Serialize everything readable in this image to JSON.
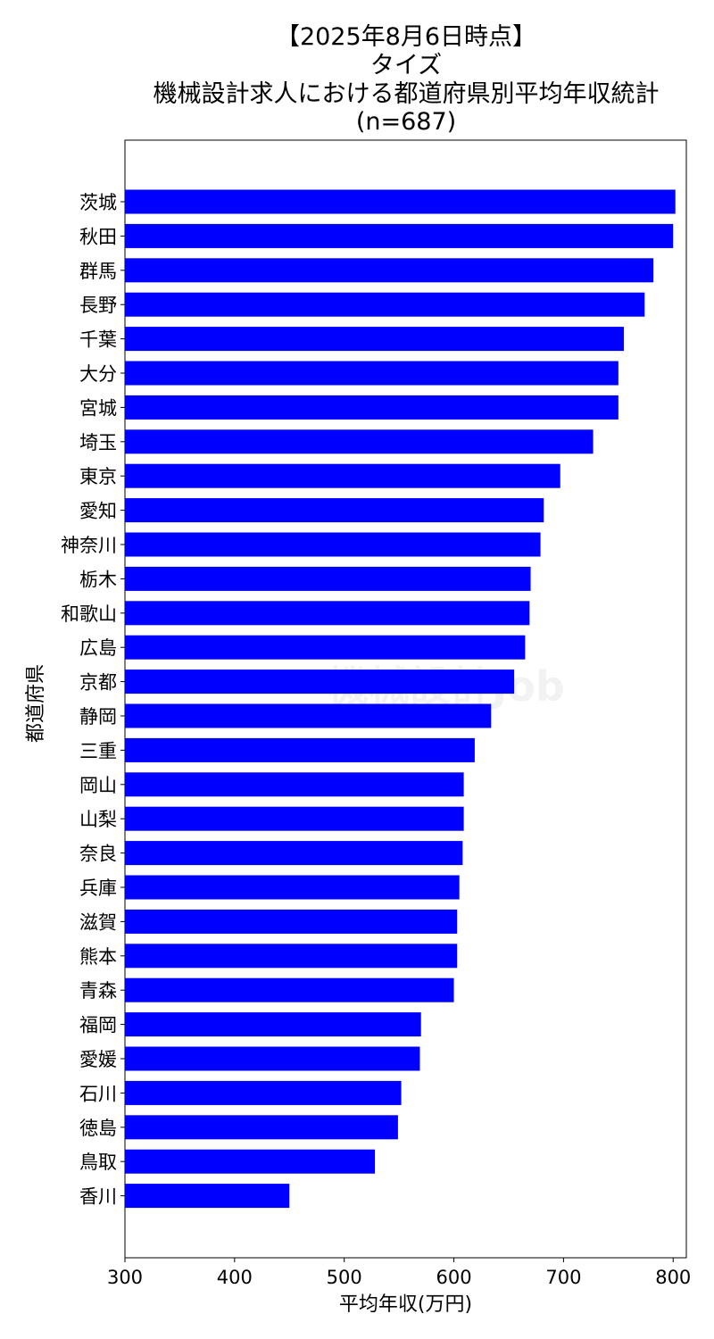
{
  "chart_data": {
    "type": "bar",
    "orientation": "horizontal",
    "title": [
      "【2025年8月6日時点】",
      "タイズ",
      "機械設計求人における都道府県別平均年収統計",
      "(n=687)"
    ],
    "xlabel": "平均年収(万円)",
    "ylabel": "都道府県",
    "xlim": [
      300,
      812
    ],
    "xticks": [
      300,
      400,
      500,
      600,
      700,
      800
    ],
    "grid": false,
    "bar_color": "#0000ff",
    "categories": [
      "茨城",
      "秋田",
      "群馬",
      "長野",
      "千葉",
      "大分",
      "宮城",
      "埼玉",
      "東京",
      "愛知",
      "神奈川",
      "栃木",
      "和歌山",
      "広島",
      "京都",
      "静岡",
      "三重",
      "岡山",
      "山梨",
      "奈良",
      "兵庫",
      "滋賀",
      "熊本",
      "青森",
      "福岡",
      "愛媛",
      "石川",
      "徳島",
      "鳥取",
      "香川"
    ],
    "values": [
      802,
      800,
      782,
      774,
      755,
      750,
      750,
      727,
      697,
      682,
      679,
      670,
      669,
      665,
      655,
      634,
      619,
      609,
      609,
      608,
      605,
      603,
      603,
      600,
      570,
      569,
      552,
      549,
      528,
      450
    ]
  },
  "watermark": {
    "text": "機械設計Job",
    "color": "#f2f2f2"
  }
}
